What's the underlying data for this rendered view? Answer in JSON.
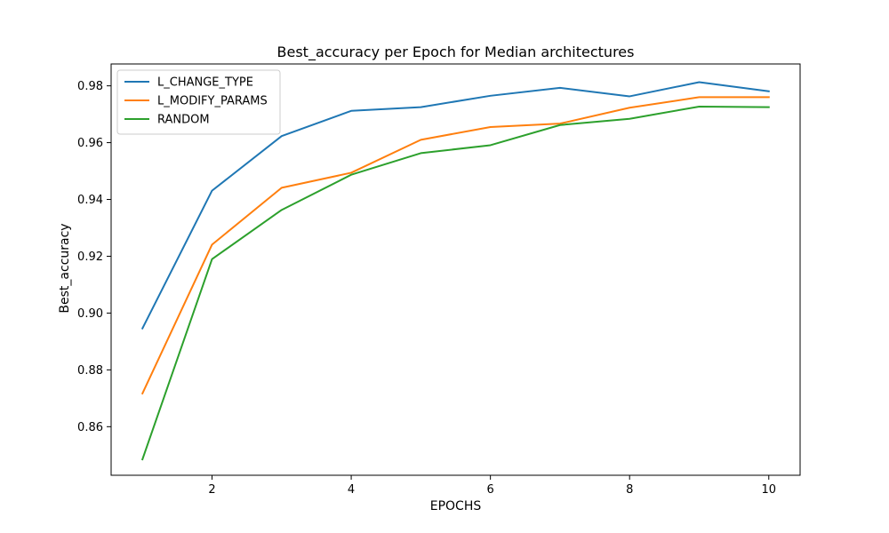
{
  "chart_data": {
    "type": "line",
    "title": "Best_accuracy per Epoch for Median architectures",
    "xlabel": "EPOCHS",
    "ylabel": "Best_accuracy",
    "x": [
      1,
      2,
      3,
      4,
      5,
      6,
      7,
      8,
      9,
      10
    ],
    "xlim": [
      0.55,
      10.45
    ],
    "ylim": [
      0.8429,
      0.9877
    ],
    "xticks": [
      2,
      4,
      6,
      8,
      10
    ],
    "yticks": [
      0.86,
      0.88,
      0.9,
      0.92,
      0.94,
      0.96,
      0.98
    ],
    "xtick_labels": [
      "2",
      "4",
      "6",
      "8",
      "10"
    ],
    "ytick_labels": [
      "0.86",
      "0.88",
      "0.90",
      "0.92",
      "0.94",
      "0.96",
      "0.98"
    ],
    "grid": false,
    "legend_position": "top-left",
    "series": [
      {
        "name": "L_CHANGE_TYPE",
        "color": "#1f77b4",
        "values": [
          0.8946,
          0.9431,
          0.9623,
          0.9712,
          0.9725,
          0.9765,
          0.9793,
          0.9763,
          0.9813,
          0.9781
        ]
      },
      {
        "name": "L_MODIFY_PARAMS",
        "color": "#ff7f0e",
        "values": [
          0.8717,
          0.9241,
          0.9441,
          0.9494,
          0.961,
          0.9655,
          0.9667,
          0.9723,
          0.976,
          0.976
        ]
      },
      {
        "name": "RANDOM",
        "color": "#2ca02c",
        "values": [
          0.8485,
          0.919,
          0.9363,
          0.9487,
          0.9563,
          0.9591,
          0.9662,
          0.9684,
          0.9727,
          0.9725
        ]
      }
    ]
  }
}
